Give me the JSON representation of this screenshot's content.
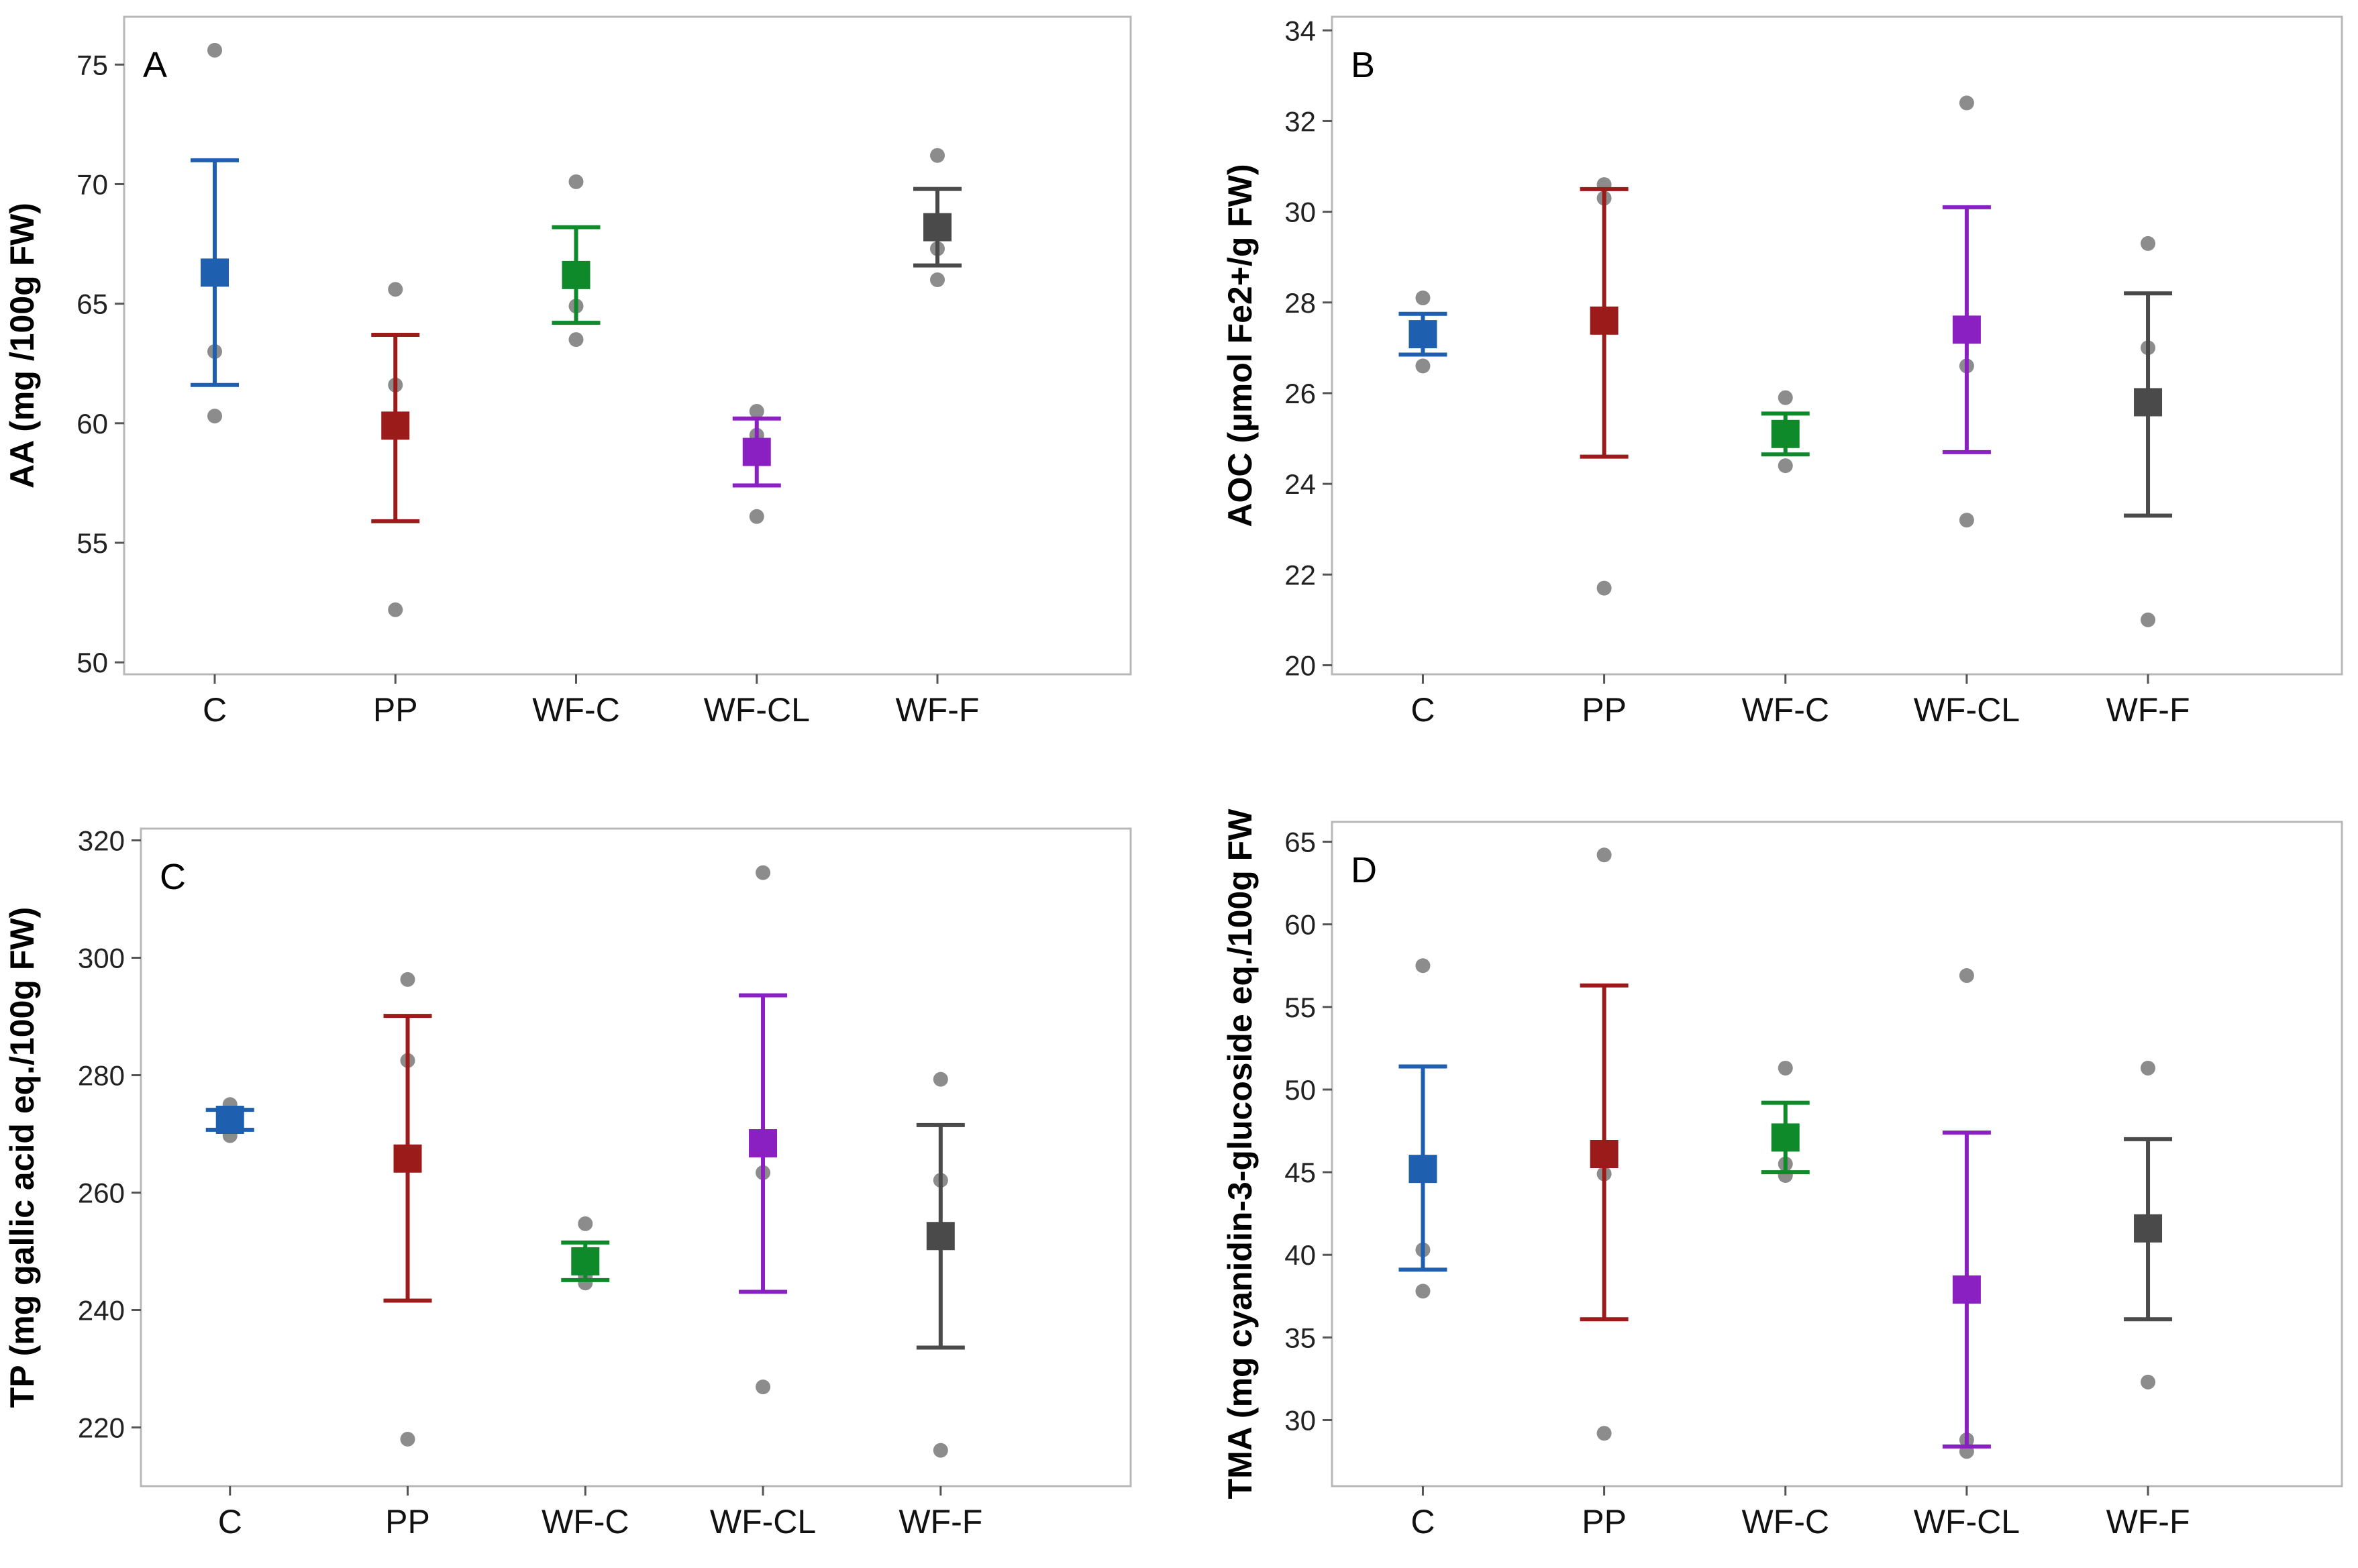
{
  "colors": {
    "C": "#1F5FB0",
    "PP": "#9B1B1B",
    "WF-C": "#0F8A2A",
    "WF-CL": "#8A1FC2",
    "WF-F": "#4A4A4A",
    "points": "#8C8C8C",
    "frame": "#B8B8B8"
  },
  "chart_data": [
    {
      "type": "scatter",
      "panel": "A",
      "ylabel": "AA (mg /100g FW)",
      "xlabel": "",
      "categories": [
        "C",
        "PP",
        "WF-C",
        "WF-CL",
        "WF-F"
      ],
      "ylim": [
        49.5,
        77
      ],
      "yticks": [
        50,
        55,
        60,
        65,
        70,
        75
      ],
      "means": [
        66.3,
        59.9,
        66.2,
        58.8,
        68.2
      ],
      "error_low": [
        61.6,
        55.9,
        64.2,
        57.4,
        66.6
      ],
      "error_high": [
        71.0,
        63.7,
        68.2,
        60.2,
        69.8
      ],
      "points": [
        [
          75.6,
          63.0,
          60.3
        ],
        [
          65.6,
          61.6,
          52.2
        ],
        [
          70.1,
          64.9,
          63.5
        ],
        [
          60.5,
          59.5,
          56.1
        ],
        [
          71.2,
          67.3,
          66.0
        ]
      ]
    },
    {
      "type": "scatter",
      "panel": "B",
      "ylabel": "AOC (µmol Fe2+/g FW)",
      "xlabel": "",
      "categories": [
        "C",
        "PP",
        "WF-C",
        "WF-CL",
        "WF-F"
      ],
      "ylim": [
        19.8,
        34.3
      ],
      "yticks": [
        20,
        22,
        24,
        26,
        28,
        30,
        32,
        34
      ],
      "means": [
        27.3,
        27.6,
        25.1,
        27.4,
        25.8
      ],
      "error_low": [
        26.85,
        24.6,
        24.65,
        24.7,
        23.3
      ],
      "error_high": [
        27.75,
        30.5,
        25.55,
        30.1,
        28.2
      ],
      "points": [
        [
          28.1,
          27.2,
          26.6
        ],
        [
          30.6,
          30.3,
          21.7
        ],
        [
          25.9,
          25.0,
          24.4
        ],
        [
          32.4,
          26.6,
          23.2
        ],
        [
          29.3,
          27.0,
          21.0
        ]
      ]
    },
    {
      "type": "scatter",
      "panel": "C",
      "ylabel": "TP (mg gallic acid eq./100g FW)",
      "xlabel": "",
      "categories": [
        "C",
        "PP",
        "WF-C",
        "WF-CL",
        "WF-F"
      ],
      "ylim": [
        210,
        322
      ],
      "yticks": [
        220,
        240,
        260,
        280,
        300,
        320
      ],
      "means": [
        272.4,
        265.8,
        248.3,
        268.4,
        252.6
      ],
      "error_low": [
        270.7,
        241.6,
        245.1,
        243.1,
        233.6
      ],
      "error_high": [
        274.1,
        290.1,
        251.5,
        293.6,
        271.5
      ],
      "points": [
        [
          275.0,
          272.3,
          269.7
        ],
        [
          296.3,
          282.5,
          218.0
        ],
        [
          254.7,
          245.8,
          244.6
        ],
        [
          314.5,
          263.4,
          226.9
        ],
        [
          279.3,
          262.1,
          216.1
        ]
      ]
    },
    {
      "type": "scatter",
      "panel": "D",
      "ylabel": "TMA (mg cyanidin-3-glucoside eq./100g FW",
      "xlabel": "",
      "categories": [
        "C",
        "PP",
        "WF-C",
        "WF-CL",
        "WF-F"
      ],
      "ylim": [
        26,
        66.2
      ],
      "yticks": [
        30,
        35,
        40,
        45,
        50,
        55,
        60,
        65
      ],
      "means": [
        45.2,
        46.1,
        47.1,
        37.9,
        41.6
      ],
      "error_low": [
        39.1,
        36.1,
        45.0,
        28.4,
        36.1
      ],
      "error_high": [
        51.4,
        56.3,
        49.2,
        47.4,
        47.0
      ],
      "points": [
        [
          57.5,
          40.3,
          37.8
        ],
        [
          64.2,
          44.9,
          29.2
        ],
        [
          51.3,
          45.5,
          44.8
        ],
        [
          56.9,
          28.8,
          28.1
        ],
        [
          51.3,
          41.4,
          32.3
        ]
      ]
    }
  ]
}
